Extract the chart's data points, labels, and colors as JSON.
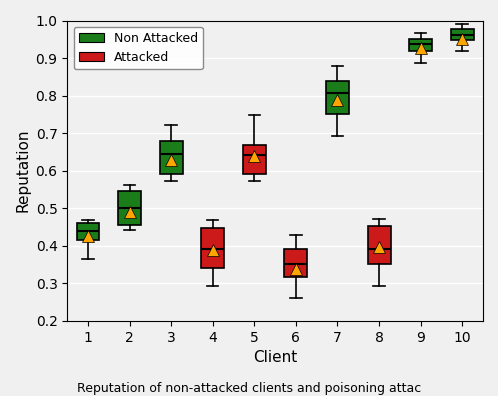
{
  "clients": [
    1,
    2,
    3,
    4,
    5,
    6,
    7,
    8,
    9,
    10
  ],
  "attacked": [
    false,
    false,
    false,
    true,
    true,
    true,
    false,
    true,
    false,
    false
  ],
  "boxes": {
    "1": {
      "whislo": 0.365,
      "q1": 0.415,
      "med": 0.44,
      "q3": 0.462,
      "whishi": 0.47,
      "mean": 0.425
    },
    "2": {
      "whislo": 0.443,
      "q1": 0.455,
      "med": 0.5,
      "q3": 0.545,
      "whishi": 0.562,
      "mean": 0.49
    },
    "3": {
      "whislo": 0.572,
      "q1": 0.592,
      "med": 0.645,
      "q3": 0.678,
      "whishi": 0.722,
      "mean": 0.628
    },
    "4": {
      "whislo": 0.292,
      "q1": 0.34,
      "med": 0.392,
      "q3": 0.448,
      "whishi": 0.468,
      "mean": 0.388
    },
    "5": {
      "whislo": 0.572,
      "q1": 0.592,
      "med": 0.642,
      "q3": 0.668,
      "whishi": 0.748,
      "mean": 0.638
    },
    "6": {
      "whislo": 0.262,
      "q1": 0.318,
      "med": 0.352,
      "q3": 0.392,
      "whishi": 0.428,
      "mean": 0.338
    },
    "7": {
      "whislo": 0.692,
      "q1": 0.752,
      "med": 0.808,
      "q3": 0.838,
      "whishi": 0.878,
      "mean": 0.788
    },
    "8": {
      "whislo": 0.292,
      "q1": 0.352,
      "med": 0.392,
      "q3": 0.452,
      "whishi": 0.472,
      "mean": 0.398
    },
    "9": {
      "whislo": 0.888,
      "q1": 0.918,
      "med": 0.938,
      "q3": 0.952,
      "whishi": 0.968,
      "mean": 0.928
    },
    "10": {
      "whislo": 0.918,
      "q1": 0.948,
      "med": 0.962,
      "q3": 0.978,
      "whishi": 0.992,
      "mean": 0.952
    }
  },
  "green_color": "#1a7d1a",
  "red_color": "#cc1a1a",
  "mean_marker_color": "#FFA500",
  "mean_marker": "^",
  "ylabel": "Reputation",
  "xlabel": "Client",
  "ylim": [
    0.2,
    1.0
  ],
  "yticks": [
    0.2,
    0.3,
    0.4,
    0.5,
    0.6,
    0.7,
    0.8,
    0.9,
    1.0
  ],
  "legend_labels": [
    "Non Attacked",
    "Attacked"
  ],
  "legend_colors": [
    "#1a7d1a",
    "#cc1a1a"
  ],
  "box_width": 0.55,
  "caption": "Reputation of non-attacked clients and poisoning attac",
  "bg_color": "#f0f0f0"
}
